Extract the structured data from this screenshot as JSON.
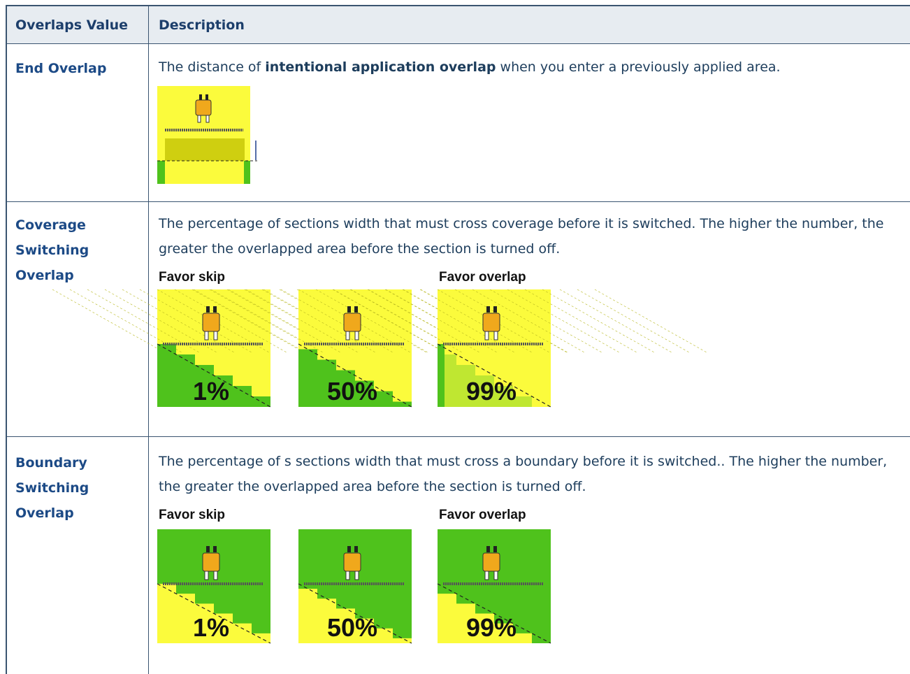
{
  "table": {
    "headers": [
      "Overlaps Value",
      "Description"
    ],
    "rows": [
      {
        "name": "End Overlap",
        "description": [
          "The distance of ",
          "intentional application overlap",
          " when you enter a previously applied area."
        ]
      },
      {
        "name": "Coverage Switching Overlap",
        "description": [
          "The percentage of sections width that must cross coverage before it is switched. The higher the number, the greater the overlapped area before the section is turned off."
        ],
        "figures": [
          {
            "caption": "Favor skip",
            "label": "1%"
          },
          {
            "label": "50%"
          },
          {
            "caption": "Favor overlap",
            "label": "99%"
          }
        ]
      },
      {
        "name": "Boundary Switching Overlap",
        "description": [
          "The percentage of s sections width that must cross a boundary before it is switched.. The higher the number, the greater the overlapped area before the section is turned off."
        ],
        "figures": [
          {
            "caption": "Favor skip",
            "label": "1%"
          },
          {
            "label": "50%"
          },
          {
            "caption": "Favor overlap",
            "label": "99%"
          }
        ]
      }
    ]
  }
}
